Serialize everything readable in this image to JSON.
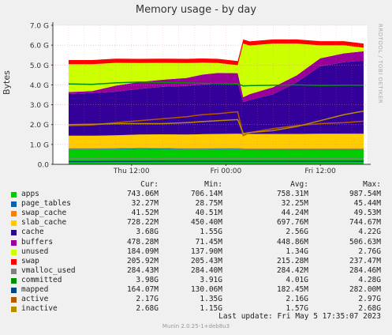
{
  "chart_data": {
    "type": "area",
    "title": "Memory usage - by day",
    "ylabel": "Bytes",
    "vertical_label": "RRDTOOL / TOBI OETIKER",
    "ylim": [
      0,
      7.0
    ],
    "ytick_labels": [
      "0.0",
      "1.0 G",
      "2.0 G",
      "3.0 G",
      "4.0 G",
      "5.0 G",
      "6.0 G",
      "7.0 G"
    ],
    "ytick_values": [
      0,
      1,
      2,
      3,
      4,
      5,
      6,
      7
    ],
    "xtick_labels": [
      "Thu 12:00",
      "Fri 00:00",
      "Fri 12:00"
    ],
    "xtick_hours": [
      12,
      24,
      36
    ],
    "x_hours": [
      4,
      7,
      10,
      13,
      16,
      19,
      21,
      23,
      25.5,
      26.2,
      27,
      30,
      33,
      36,
      39,
      41.5
    ],
    "series": [
      {
        "name": "apps",
        "color": "#00cc00",
        "values": [
          0.75,
          0.75,
          0.76,
          0.78,
          0.77,
          0.75,
          0.75,
          0.76,
          0.76,
          0.74,
          0.74,
          0.74,
          0.74,
          0.74,
          0.74,
          0.74
        ]
      },
      {
        "name": "page_tables",
        "color": "#0066b3",
        "values": [
          0.03,
          0.03,
          0.03,
          0.03,
          0.03,
          0.03,
          0.03,
          0.03,
          0.03,
          0.03,
          0.03,
          0.03,
          0.03,
          0.03,
          0.03,
          0.03
        ]
      },
      {
        "name": "swap_cache",
        "color": "#ff8000",
        "values": [
          0.04,
          0.04,
          0.04,
          0.04,
          0.04,
          0.04,
          0.04,
          0.04,
          0.04,
          0.04,
          0.04,
          0.04,
          0.04,
          0.04,
          0.04,
          0.04
        ]
      },
      {
        "name": "slab_cache",
        "color": "#ffcc00",
        "values": [
          0.62,
          0.62,
          0.63,
          0.65,
          0.67,
          0.68,
          0.7,
          0.7,
          0.71,
          0.72,
          0.72,
          0.72,
          0.72,
          0.73,
          0.73,
          0.73
        ]
      },
      {
        "name": "cache",
        "color": "#330099",
        "values": [
          2.1,
          2.15,
          2.2,
          2.3,
          2.4,
          2.45,
          2.5,
          2.52,
          2.55,
          1.6,
          1.7,
          2.0,
          2.6,
          3.4,
          3.6,
          3.68
        ]
      },
      {
        "name": "buffers",
        "color": "#990099",
        "values": [
          0.1,
          0.1,
          0.3,
          0.35,
          0.35,
          0.4,
          0.5,
          0.55,
          0.5,
          0.25,
          0.3,
          0.35,
          0.35,
          0.4,
          0.45,
          0.47
        ]
      },
      {
        "name": "unused",
        "color": "#ccff00",
        "values": [
          1.4,
          1.35,
          1.15,
          0.95,
          0.85,
          0.75,
          0.6,
          0.5,
          0.4,
          2.7,
          2.45,
          2.2,
          1.6,
          0.65,
          0.4,
          0.18
        ]
      },
      {
        "name": "swap",
        "color": "#ff0000",
        "values": [
          0.21,
          0.21,
          0.21,
          0.21,
          0.21,
          0.21,
          0.21,
          0.21,
          0.21,
          0.21,
          0.21,
          0.21,
          0.21,
          0.21,
          0.21,
          0.21
        ]
      },
      {
        "name": "vmalloc_used",
        "color": "#808080",
        "values": [
          0.28,
          0.28,
          0.28,
          0.28,
          0.28,
          0.28,
          0.28,
          0.28,
          0.28,
          0.28,
          0.28,
          0.28,
          0.28,
          0.28,
          0.28,
          0.28
        ]
      },
      {
        "name": "committed",
        "color": "#008f00",
        "values": [
          4.05,
          4.03,
          4.1,
          4.15,
          4.12,
          4.1,
          4.08,
          4.06,
          4.05,
          3.95,
          3.96,
          3.98,
          4.0,
          3.97,
          3.98,
          3.98
        ]
      },
      {
        "name": "mapped",
        "color": "#00487d",
        "values": [
          0.14,
          0.14,
          0.15,
          0.15,
          0.16,
          0.16,
          0.16,
          0.16,
          0.16,
          0.16,
          0.16,
          0.16,
          0.16,
          0.16,
          0.16,
          0.16
        ]
      },
      {
        "name": "active",
        "color": "#b35a00",
        "values": [
          1.95,
          1.98,
          2.1,
          2.2,
          2.3,
          2.4,
          2.5,
          2.55,
          2.65,
          1.45,
          1.6,
          1.8,
          1.95,
          2.05,
          2.1,
          2.17
        ]
      },
      {
        "name": "inactive",
        "color": "#b38f00",
        "values": [
          2.0,
          2.02,
          2.05,
          2.05,
          2.05,
          2.1,
          2.15,
          2.2,
          2.25,
          1.55,
          1.6,
          1.7,
          1.9,
          2.2,
          2.5,
          2.68
        ]
      }
    ],
    "stacked_series": [
      "apps",
      "page_tables",
      "swap_cache",
      "slab_cache",
      "cache",
      "buffers",
      "unused",
      "swap"
    ],
    "line_series": [
      "committed",
      "mapped",
      "active",
      "inactive",
      "vmalloc_used"
    ],
    "grid": true
  },
  "legend": {
    "headers": {
      "cur": "Cur:",
      "min": "Min:",
      "avg": "Avg:",
      "max": "Max:"
    },
    "rows": [
      {
        "name": "apps",
        "color": "#00cc00",
        "cur": "743.06M",
        "min": "706.14M",
        "avg": "758.31M",
        "max": "987.54M"
      },
      {
        "name": "page_tables",
        "color": "#0066b3",
        "cur": "32.27M",
        "min": "28.75M",
        "avg": "32.25M",
        "max": "45.44M"
      },
      {
        "name": "swap_cache",
        "color": "#ff8000",
        "cur": "41.52M",
        "min": "40.51M",
        "avg": "44.24M",
        "max": "49.53M"
      },
      {
        "name": "slab_cache",
        "color": "#ffcc00",
        "cur": "728.22M",
        "min": "450.40M",
        "avg": "697.76M",
        "max": "744.67M"
      },
      {
        "name": "cache",
        "color": "#330099",
        "cur": "3.68G",
        "min": "1.55G",
        "avg": "2.56G",
        "max": "4.22G"
      },
      {
        "name": "buffers",
        "color": "#990099",
        "cur": "478.28M",
        "min": "71.45M",
        "avg": "448.86M",
        "max": "506.63M"
      },
      {
        "name": "unused",
        "color": "#ccff00",
        "cur": "184.09M",
        "min": "137.90M",
        "avg": "1.34G",
        "max": "2.76G"
      },
      {
        "name": "swap",
        "color": "#ff0000",
        "cur": "205.92M",
        "min": "205.43M",
        "avg": "215.28M",
        "max": "237.47M"
      },
      {
        "name": "vmalloc_used",
        "color": "#808080",
        "cur": "284.43M",
        "min": "284.40M",
        "avg": "284.42M",
        "max": "284.46M"
      },
      {
        "name": "committed",
        "color": "#008f00",
        "cur": "3.98G",
        "min": "3.91G",
        "avg": "4.01G",
        "max": "4.28G"
      },
      {
        "name": "mapped",
        "color": "#00487d",
        "cur": "164.07M",
        "min": "130.06M",
        "avg": "182.45M",
        "max": "282.00M"
      },
      {
        "name": "active",
        "color": "#b35a00",
        "cur": "2.17G",
        "min": "1.35G",
        "avg": "2.16G",
        "max": "2.97G"
      },
      {
        "name": "inactive",
        "color": "#b38f00",
        "cur": "2.68G",
        "min": "1.15G",
        "avg": "1.57G",
        "max": "2.68G"
      }
    ]
  },
  "last_update": "Last update:  Fri May  5 17:35:07 2023",
  "footer": "Munin 2.0.25-1+deb8u3"
}
